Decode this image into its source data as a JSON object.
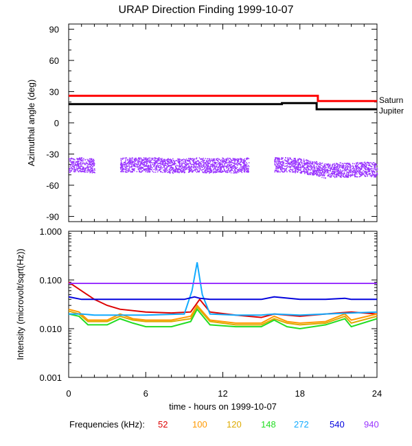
{
  "title": "URAP Direction Finding  1999-10-07",
  "chart_data": [
    {
      "type": "line",
      "ylabel": "Azimuthal angle (deg)",
      "ylim": [
        -95,
        95
      ],
      "yticks": [
        "90",
        "60",
        "30",
        "0",
        "-30",
        "-60",
        "-90"
      ],
      "xlim": [
        0,
        24
      ],
      "series": [
        {
          "name": "Saturn",
          "color": "#ff0000",
          "x": [
            0,
            19.4,
            19.4,
            24
          ],
          "values": [
            26,
            26,
            21,
            21
          ]
        },
        {
          "name": "Jupiter",
          "color": "#000000",
          "x": [
            0,
            16.6,
            16.6,
            19.3,
            19.3,
            24
          ],
          "values": [
            18,
            18,
            19,
            19,
            13,
            13
          ]
        },
        {
          "name": "",
          "color": "#9933ff",
          "style": "scatter band",
          "x": [
            0,
            1,
            2,
            3,
            4,
            5,
            6,
            7,
            8,
            9,
            10,
            11,
            12,
            13,
            14,
            15,
            16,
            17,
            18,
            19,
            20,
            21,
            22,
            23,
            24
          ],
          "values": [
            -40,
            -40,
            -41,
            null,
            -40,
            -40,
            -40,
            -40,
            -41,
            -41,
            -40,
            -41,
            -40,
            -41,
            -40,
            null,
            -40,
            -40,
            -41,
            -43,
            -46,
            -45,
            -45,
            -44,
            -45
          ]
        }
      ]
    },
    {
      "type": "line",
      "ylabel": "Intensity (microvolt/sqrt(Hz))",
      "scale": "log",
      "ylim": [
        0.001,
        1.0
      ],
      "yticks": [
        "1.000",
        "0.100",
        "0.010",
        "0.001"
      ],
      "xlabel": "time - hours on 1999-10-07",
      "xticks": [
        "0",
        "6",
        "12",
        "18",
        "24"
      ],
      "xlim": [
        0,
        24
      ],
      "legend_title": "Frequencies (kHz):",
      "series": [
        {
          "name": "52",
          "color": "#dd0000",
          "x": [
            0,
            1,
            2,
            3,
            4,
            6,
            8,
            9.5,
            10.2,
            11,
            13,
            15,
            16,
            17,
            18,
            20,
            22,
            24
          ],
          "values": [
            0.09,
            0.06,
            0.04,
            0.03,
            0.025,
            0.022,
            0.021,
            0.022,
            0.04,
            0.022,
            0.019,
            0.017,
            0.02,
            0.019,
            0.018,
            0.02,
            0.022,
            0.02
          ]
        },
        {
          "name": "100",
          "color": "#ff9900",
          "x": [
            0,
            0.8,
            1.5,
            3,
            4,
            5,
            6,
            8,
            9.5,
            10,
            11,
            13,
            15,
            16,
            17,
            18,
            20,
            21.5,
            22,
            24
          ],
          "values": [
            0.025,
            0.022,
            0.015,
            0.015,
            0.02,
            0.016,
            0.015,
            0.015,
            0.018,
            0.03,
            0.015,
            0.013,
            0.013,
            0.018,
            0.014,
            0.013,
            0.014,
            0.02,
            0.015,
            0.02
          ]
        },
        {
          "name": "120",
          "color": "#ddaa00",
          "x": [
            0,
            0.8,
            1.5,
            3,
            4,
            5,
            6,
            8,
            9.5,
            10,
            11,
            13,
            15,
            16,
            17,
            18,
            20,
            21.5,
            22,
            24
          ],
          "values": [
            0.023,
            0.02,
            0.014,
            0.014,
            0.018,
            0.015,
            0.014,
            0.014,
            0.016,
            0.028,
            0.014,
            0.012,
            0.012,
            0.016,
            0.013,
            0.012,
            0.013,
            0.018,
            0.013,
            0.018
          ]
        },
        {
          "name": "148",
          "color": "#22dd22",
          "x": [
            0,
            0.8,
            1.5,
            3,
            4,
            5,
            6,
            8,
            9.5,
            10,
            11,
            13,
            15,
            16,
            17,
            18,
            20,
            21.5,
            22,
            24
          ],
          "values": [
            0.02,
            0.018,
            0.012,
            0.012,
            0.016,
            0.013,
            0.011,
            0.011,
            0.014,
            0.025,
            0.012,
            0.011,
            0.011,
            0.015,
            0.011,
            0.01,
            0.012,
            0.016,
            0.011,
            0.016
          ]
        },
        {
          "name": "272",
          "color": "#11aaff",
          "x": [
            0,
            1,
            2,
            3,
            6,
            9,
            9.6,
            10,
            10.4,
            11,
            13,
            15,
            16,
            18,
            20,
            22,
            24
          ],
          "values": [
            0.02,
            0.02,
            0.019,
            0.019,
            0.019,
            0.02,
            0.06,
            0.23,
            0.05,
            0.02,
            0.019,
            0.019,
            0.02,
            0.019,
            0.02,
            0.021,
            0.022
          ]
        },
        {
          "name": "540",
          "color": "#0000dd",
          "x": [
            0,
            1,
            2,
            6,
            9,
            9.8,
            10.2,
            11,
            13,
            15,
            16,
            18,
            20,
            21.5,
            22,
            24
          ],
          "values": [
            0.045,
            0.04,
            0.04,
            0.04,
            0.04,
            0.045,
            0.042,
            0.04,
            0.04,
            0.04,
            0.045,
            0.04,
            0.04,
            0.042,
            0.04,
            0.04
          ]
        },
        {
          "name": "940",
          "color": "#9933ff",
          "x": [
            0,
            2,
            6,
            9,
            12,
            15,
            16,
            18,
            22,
            24
          ],
          "values": [
            0.085,
            0.085,
            0.085,
            0.085,
            0.085,
            0.085,
            0.085,
            0.085,
            0.085,
            0.085
          ]
        }
      ]
    }
  ]
}
